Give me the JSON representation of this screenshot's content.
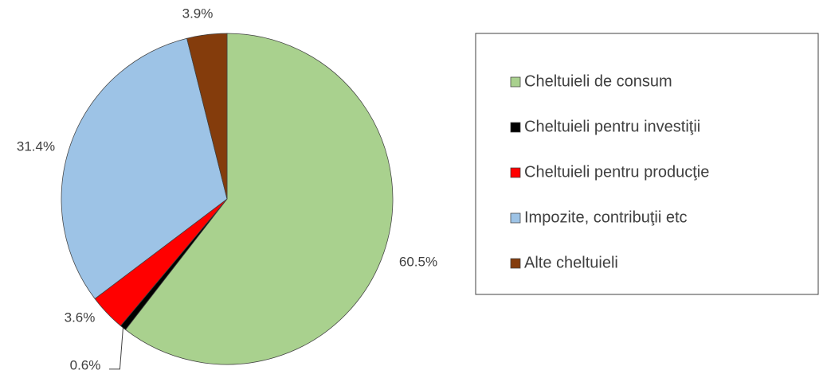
{
  "chart_data": {
    "type": "pie",
    "categories": [
      "Cheltuieli de consum",
      "Cheltuieli pentru investiţii",
      "Cheltuieli pentru producţie",
      "Impozite, contribuţii etc",
      "Alte cheltuieli"
    ],
    "values": [
      60.5,
      0.6,
      3.6,
      31.4,
      3.9
    ],
    "value_labels": [
      "60.5%",
      "0.6%",
      "3.6%",
      "31.4%",
      "3.9%"
    ],
    "colors": [
      "#a9d18e",
      "#000000",
      "#ff0000",
      "#9dc3e6",
      "#843c0c"
    ],
    "legend": "right"
  }
}
